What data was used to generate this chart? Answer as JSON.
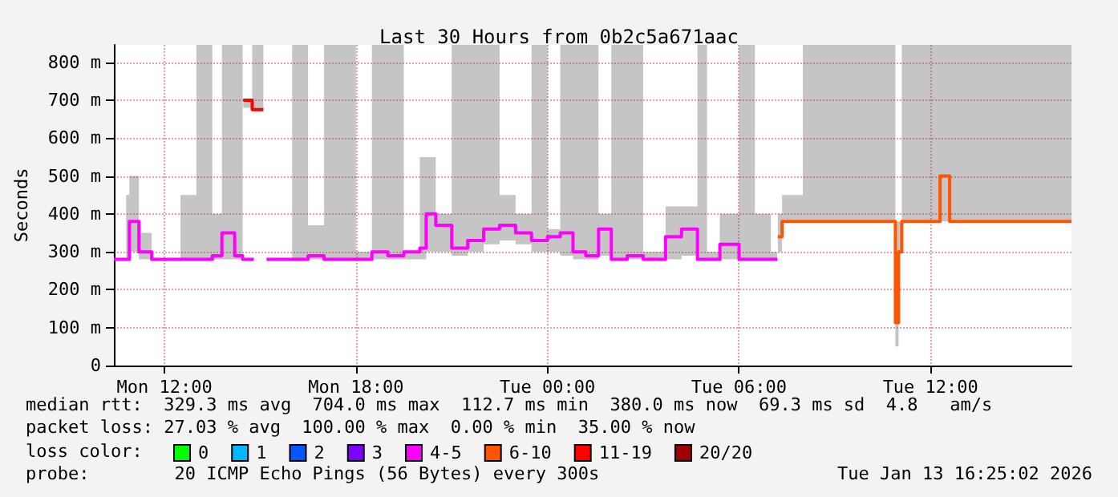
{
  "chart_data": {
    "type": "step",
    "title": "Last 30 Hours from 0b2c5a671aac",
    "ylabel": "Seconds",
    "annotations": [
      "median rtt:  329.3 ms avg  704.0 ms max  112.7 ms min  380.0 ms now  69.3 ms sd  4.8   am/s",
      "packet loss: 27.03 % avg  100.00 % max  0.00 % min  35.00 % now",
      "loss color:",
      "probe:        20 ICMP Echo Pings (56 Bytes) every 300s",
      "Tue Jan 13 16:25:02 2026"
    ],
    "xlim": [
      "2026-01-12T10:25",
      "2026-01-13T16:25"
    ],
    "xticks": [
      {
        "value": "2026-01-12T12:00",
        "label": "Mon 12:00"
      },
      {
        "value": "2026-01-12T18:00",
        "label": "Mon 18:00"
      },
      {
        "value": "2026-01-13T00:00",
        "label": "Tue 00:00"
      },
      {
        "value": "2026-01-13T06:00",
        "label": "Tue 06:00"
      },
      {
        "value": "2026-01-13T12:00",
        "label": "Tue 12:00"
      }
    ],
    "ylim": [
      0,
      846
    ],
    "yticks": [
      {
        "value": 0,
        "label": "0"
      },
      {
        "value": 100,
        "label": "100 m"
      },
      {
        "value": 200,
        "label": "200 m"
      },
      {
        "value": 300,
        "label": "300 m"
      },
      {
        "value": 400,
        "label": "400 m"
      },
      {
        "value": 500,
        "label": "500 m"
      },
      {
        "value": 600,
        "label": "600 m"
      },
      {
        "value": 700,
        "label": "700 m"
      },
      {
        "value": 800,
        "label": "800 m"
      }
    ],
    "grid": true,
    "legend": "bottom",
    "marker": "none",
    "series": [
      {
        "name": "0",
        "color": "#00ff00"
      },
      {
        "name": "1",
        "color": "#00b8ff"
      },
      {
        "name": "2",
        "color": "#0059ff"
      },
      {
        "name": "3",
        "color": "#7e00ff"
      },
      {
        "name": "4-5",
        "color": "#ff00ff",
        "x": [
          "2026-01-12T10:25",
          "2026-01-12T10:48",
          "2026-01-12T10:54",
          "2026-01-12T11:12",
          "2026-01-12T11:36",
          "2026-01-12T12:00",
          "2026-01-12T12:30",
          "2026-01-12T13:00",
          "2026-01-12T13:30",
          "2026-01-12T13:48",
          "2026-01-12T14:12",
          "2026-01-12T14:27",
          "2026-01-12T14:48",
          "2026-01-12T15:12",
          "2026-01-12T16:00",
          "2026-01-12T16:30",
          "2026-01-12T17:00",
          "2026-01-12T17:30",
          "2026-01-12T18:00",
          "2026-01-12T18:30",
          "2026-01-12T19:00",
          "2026-01-12T19:30",
          "2026-01-12T20:00",
          "2026-01-12T20:12",
          "2026-01-12T20:30",
          "2026-01-12T21:00",
          "2026-01-12T21:30",
          "2026-01-12T22:00",
          "2026-01-12T22:30",
          "2026-01-12T23:00",
          "2026-01-12T23:30",
          "2026-01-13T00:00",
          "2026-01-13T00:24",
          "2026-01-13T00:48",
          "2026-01-13T01:12",
          "2026-01-13T01:36",
          "2026-01-13T02:00",
          "2026-01-13T02:30",
          "2026-01-13T03:00",
          "2026-01-13T03:42",
          "2026-01-13T04:12",
          "2026-01-13T04:42",
          "2026-01-13T05:00",
          "2026-01-13T05:24",
          "2026-01-13T06:00",
          "2026-01-13T06:30",
          "2026-01-13T07:00",
          "2026-01-13T07:12"
        ],
        "values": [
          280,
          280,
          380,
          300,
          280,
          280,
          280,
          280,
          290,
          350,
          290,
          280,
          null,
          280,
          280,
          290,
          280,
          280,
          280,
          300,
          290,
          300,
          310,
          400,
          370,
          310,
          330,
          360,
          370,
          350,
          330,
          340,
          350,
          300,
          290,
          360,
          280,
          290,
          280,
          340,
          360,
          280,
          280,
          320,
          280,
          280,
          280,
          280
        ],
        "lower": [
          280,
          280,
          300,
          280,
          280,
          280,
          280,
          280,
          280,
          280,
          280,
          280,
          null,
          280,
          280,
          280,
          280,
          280,
          280,
          280,
          280,
          280,
          280,
          300,
          300,
          290,
          300,
          320,
          330,
          320,
          300,
          300,
          290,
          280,
          280,
          290,
          280,
          280,
          280,
          280,
          290,
          280,
          280,
          280,
          280,
          280,
          280,
          280
        ],
        "upper": [
          280,
          450,
          500,
          350,
          280,
          280,
          450,
          846,
          400,
          846,
          846,
          846,
          null,
          280,
          846,
          370,
          846,
          846,
          300,
          846,
          846,
          300,
          550,
          550,
          400,
          846,
          846,
          846,
          450,
          400,
          846,
          360,
          846,
          846,
          846,
          400,
          846,
          846,
          300,
          420,
          420,
          846,
          300,
          400,
          846,
          400,
          300,
          300
        ]
      },
      {
        "name": "6-10",
        "color": "#ff5500",
        "x": [
          "2026-01-13T07:13",
          "2026-01-13T07:21",
          "2026-01-13T08:00",
          "2026-01-13T08:30",
          "2026-01-13T09:00",
          "2026-01-13T09:30",
          "2026-01-13T10:00",
          "2026-01-13T10:30",
          "2026-01-13T10:51",
          "2026-01-13T10:54",
          "2026-01-13T11:00",
          "2026-01-13T11:06",
          "2026-01-13T11:30",
          "2026-01-13T12:00",
          "2026-01-13T12:18",
          "2026-01-13T12:36",
          "2026-01-13T13:00",
          "2026-01-13T13:30",
          "2026-01-13T14:00",
          "2026-01-13T14:30",
          "2026-01-13T15:00",
          "2026-01-13T15:30",
          "2026-01-13T16:00",
          "2026-01-13T16:25"
        ],
        "values": [
          340,
          380,
          380,
          380,
          380,
          380,
          380,
          380,
          380,
          113,
          300,
          380,
          380,
          380,
          500,
          380,
          380,
          380,
          380,
          380,
          380,
          380,
          380,
          380
        ],
        "lower": [
          300,
          380,
          380,
          380,
          380,
          380,
          380,
          380,
          380,
          50,
          300,
          380,
          380,
          380,
          380,
          380,
          380,
          380,
          380,
          380,
          380,
          380,
          380,
          380
        ],
        "upper": [
          400,
          450,
          846,
          846,
          846,
          846,
          846,
          846,
          846,
          380,
          380,
          846,
          846,
          846,
          846,
          846,
          846,
          846,
          846,
          846,
          846,
          846,
          846,
          380
        ]
      },
      {
        "name": "11-19",
        "color": "#ff0000",
        "x": [
          "2026-01-12T14:28",
          "2026-01-12T14:42",
          "2026-01-12T14:45",
          "2026-01-12T15:06"
        ],
        "values": [
          700,
          700,
          675,
          675
        ],
        "lower": [
          680,
          680,
          675,
          675
        ],
        "upper": [
          700,
          700,
          846,
          846
        ]
      },
      {
        "name": "20/20",
        "color": "#a10000"
      }
    ]
  }
}
